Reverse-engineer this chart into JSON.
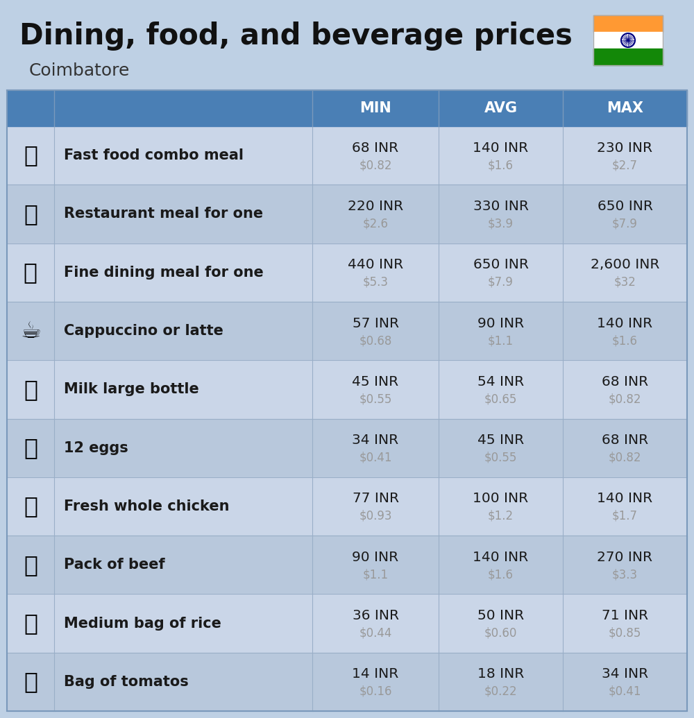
{
  "title": "Dining, food, and beverage prices",
  "subtitle": "Coimbatore",
  "background_color": "#bed0e4",
  "header_color": "#4a7fb5",
  "header_text_color": "#ffffff",
  "row_color_odd": "#cad6e8",
  "row_color_even": "#b8c8dc",
  "text_color_main": "#1a1a1a",
  "text_color_sub": "#999999",
  "columns": [
    "MIN",
    "AVG",
    "MAX"
  ],
  "rows": [
    {
      "label": "Fast food combo meal",
      "min_inr": "68 INR",
      "min_usd": "$0.82",
      "avg_inr": "140 INR",
      "avg_usd": "$1.6",
      "max_inr": "230 INR",
      "max_usd": "$2.7"
    },
    {
      "label": "Restaurant meal for one",
      "min_inr": "220 INR",
      "min_usd": "$2.6",
      "avg_inr": "330 INR",
      "avg_usd": "$3.9",
      "max_inr": "650 INR",
      "max_usd": "$7.9"
    },
    {
      "label": "Fine dining meal for one",
      "min_inr": "440 INR",
      "min_usd": "$5.3",
      "avg_inr": "650 INR",
      "avg_usd": "$7.9",
      "max_inr": "2,600 INR",
      "max_usd": "$32"
    },
    {
      "label": "Cappuccino or latte",
      "min_inr": "57 INR",
      "min_usd": "$0.68",
      "avg_inr": "90 INR",
      "avg_usd": "$1.1",
      "max_inr": "140 INR",
      "max_usd": "$1.6"
    },
    {
      "label": "Milk large bottle",
      "min_inr": "45 INR",
      "min_usd": "$0.55",
      "avg_inr": "54 INR",
      "avg_usd": "$0.65",
      "max_inr": "68 INR",
      "max_usd": "$0.82"
    },
    {
      "label": "12 eggs",
      "min_inr": "34 INR",
      "min_usd": "$0.41",
      "avg_inr": "45 INR",
      "avg_usd": "$0.55",
      "max_inr": "68 INR",
      "max_usd": "$0.82"
    },
    {
      "label": "Fresh whole chicken",
      "min_inr": "77 INR",
      "min_usd": "$0.93",
      "avg_inr": "100 INR",
      "avg_usd": "$1.2",
      "max_inr": "140 INR",
      "max_usd": "$1.7"
    },
    {
      "label": "Pack of beef",
      "min_inr": "90 INR",
      "min_usd": "$1.1",
      "avg_inr": "140 INR",
      "avg_usd": "$1.6",
      "max_inr": "270 INR",
      "max_usd": "$3.3"
    },
    {
      "label": "Medium bag of rice",
      "min_inr": "36 INR",
      "min_usd": "$0.44",
      "avg_inr": "50 INR",
      "avg_usd": "$0.60",
      "max_inr": "71 INR",
      "max_usd": "$0.85"
    },
    {
      "label": "Bag of tomatos",
      "min_inr": "14 INR",
      "min_usd": "$0.16",
      "avg_inr": "18 INR",
      "avg_usd": "$0.22",
      "max_inr": "34 INR",
      "max_usd": "$0.41"
    }
  ]
}
